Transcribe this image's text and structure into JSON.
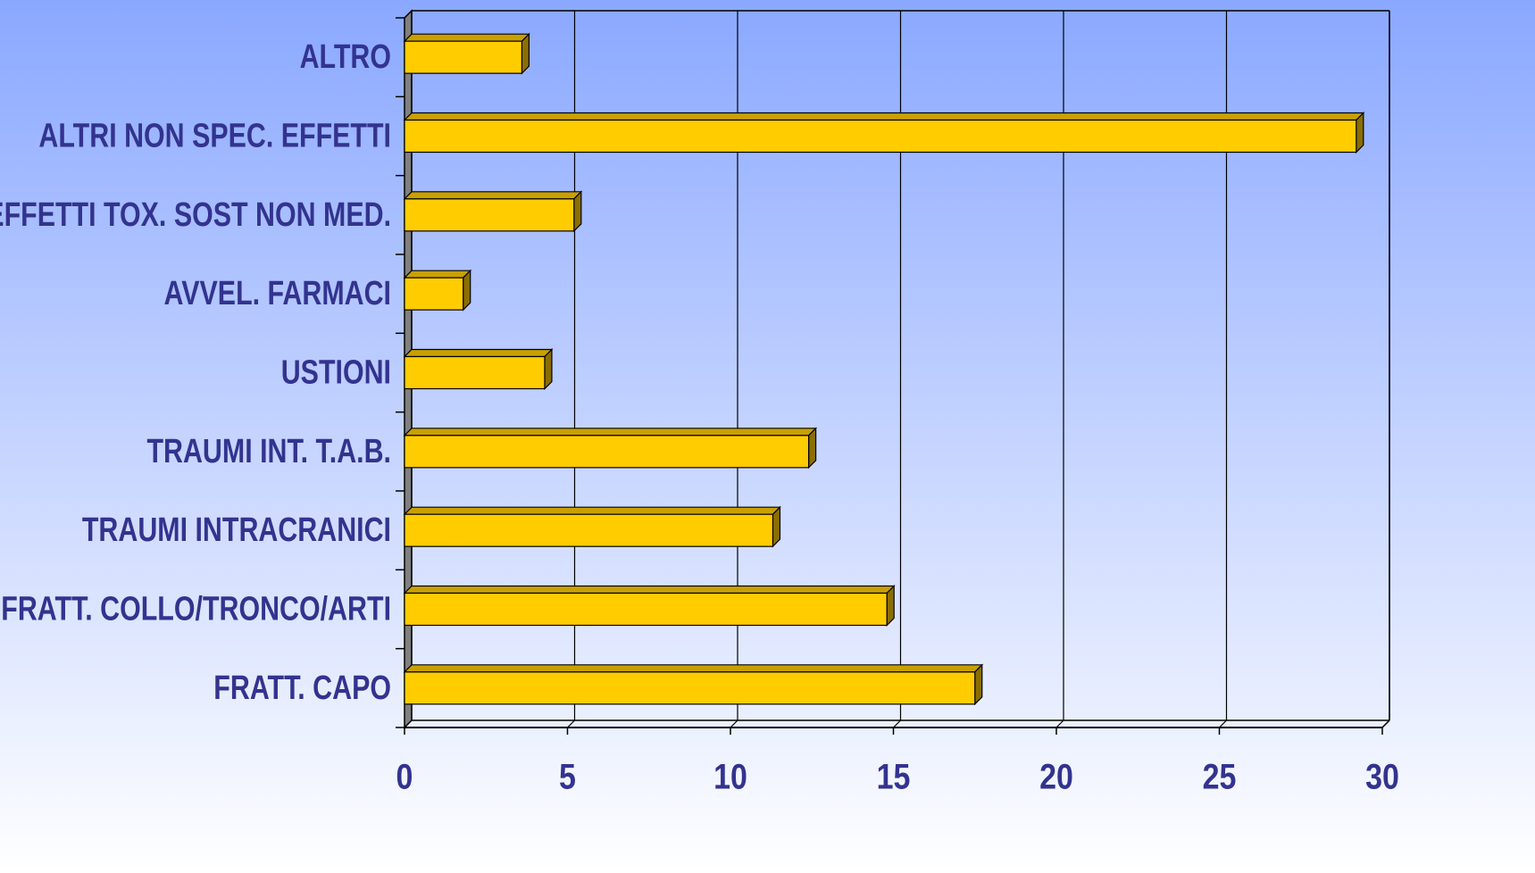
{
  "chart_data": {
    "type": "bar",
    "orientation": "horizontal",
    "categories": [
      "ALTRO",
      "ALTRI NON SPEC. EFFETTI",
      "EFFETTI TOX. SOST NON MED.",
      "AVVEL. FARMACI",
      "USTIONI",
      "TRAUMI INT. T.A.B.",
      "TRAUMI INTRACRANICI",
      "FRATT. COLLO/TRONCO/ARTI",
      "FRATT. CAPO"
    ],
    "values": [
      3.6,
      29.2,
      5.2,
      1.8,
      4.3,
      12.4,
      11.3,
      14.8,
      17.5
    ],
    "color": "#ffcc00",
    "xlim": [
      0,
      30
    ],
    "xticks": [
      0,
      5,
      10,
      15,
      20,
      25,
      30
    ],
    "grid": true
  }
}
